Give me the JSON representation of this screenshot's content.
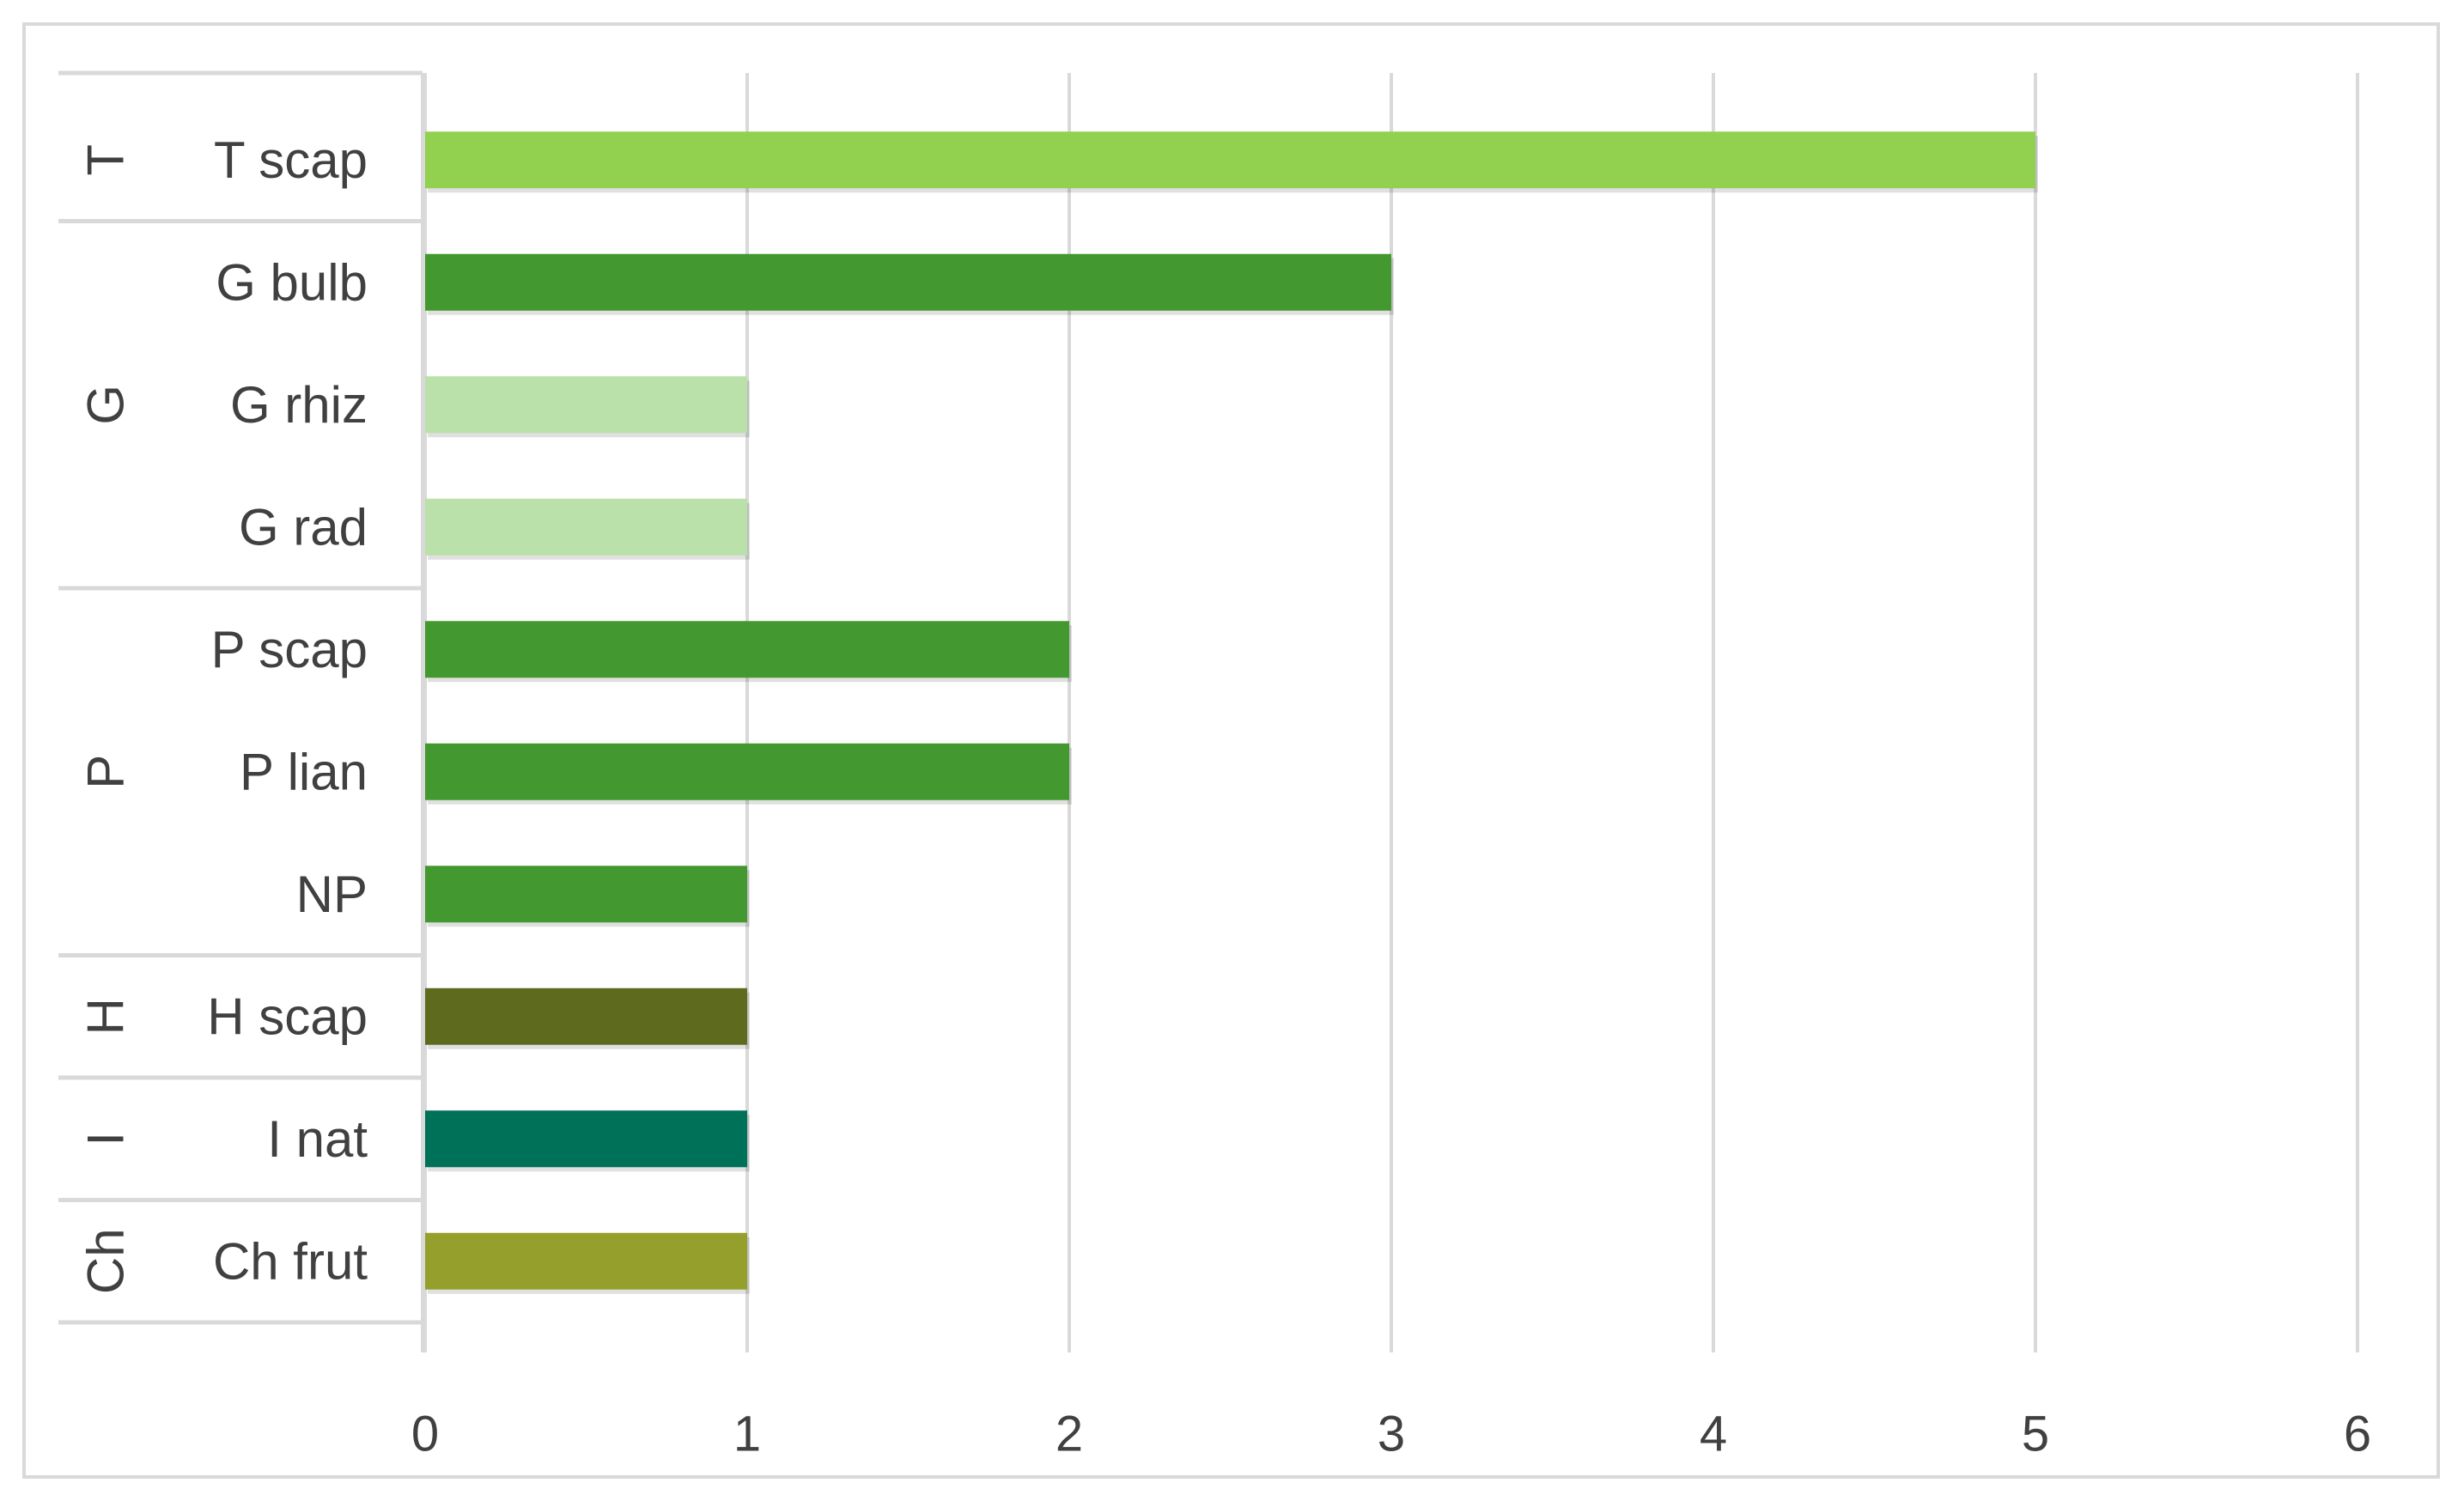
{
  "chart_data": {
    "type": "bar",
    "orientation": "horizontal",
    "xlim": [
      0,
      6
    ],
    "xticks": [
      "0",
      "1",
      "2",
      "3",
      "4",
      "5",
      "6"
    ],
    "grid": "vertical",
    "groups": [
      {
        "label": "T",
        "items": [
          {
            "label": "T scap",
            "value": 5,
            "color": "#92d050"
          }
        ]
      },
      {
        "label": "G",
        "items": [
          {
            "label": "G bulb",
            "value": 3,
            "color": "#43982f"
          },
          {
            "label": "G rhiz",
            "value": 1,
            "color": "#b9e1a9"
          },
          {
            "label": "G rad",
            "value": 1,
            "color": "#b9e1a9"
          }
        ]
      },
      {
        "label": "P",
        "items": [
          {
            "label": "P scap",
            "value": 2,
            "color": "#43982f"
          },
          {
            "label": "P lian",
            "value": 2,
            "color": "#43982f"
          },
          {
            "label": "NP",
            "value": 1,
            "color": "#43982f"
          }
        ]
      },
      {
        "label": "H",
        "items": [
          {
            "label": "H scap",
            "value": 1,
            "color": "#5e6b1f"
          }
        ]
      },
      {
        "label": "I",
        "items": [
          {
            "label": "I nat",
            "value": 1,
            "color": "#007159"
          }
        ]
      },
      {
        "label": "Ch",
        "items": [
          {
            "label": "Ch frut",
            "value": 1,
            "color": "#959f2b"
          }
        ]
      }
    ],
    "colors": {
      "grid": "#d9d9d9",
      "text": "#404040",
      "frame": "#d9d9d9"
    }
  }
}
